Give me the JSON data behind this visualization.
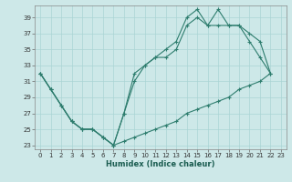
{
  "background_color": "#cde8e8",
  "grid_color": "#aad4d4",
  "line_color": "#2e7d6e",
  "xlabel": "Humidex (Indice chaleur)",
  "xlim": [
    -0.5,
    23.5
  ],
  "ylim": [
    22.5,
    40.5
  ],
  "yticks": [
    23,
    25,
    27,
    29,
    31,
    33,
    35,
    37,
    39
  ],
  "xticks": [
    0,
    1,
    2,
    3,
    4,
    5,
    6,
    7,
    8,
    9,
    10,
    11,
    12,
    13,
    14,
    15,
    16,
    17,
    18,
    19,
    20,
    21,
    22,
    23
  ],
  "series_upper": [
    32,
    30,
    28,
    26,
    25,
    25,
    24,
    23,
    27,
    32,
    33,
    34,
    35,
    36,
    39,
    40,
    38,
    40,
    38,
    38,
    37,
    36,
    32,
    null
  ],
  "series_mid": [
    32,
    30,
    28,
    26,
    25,
    25,
    24,
    23,
    27,
    31,
    33,
    34,
    34,
    35,
    38,
    39,
    38,
    38,
    38,
    38,
    36,
    34,
    32,
    null
  ],
  "series_lower": [
    32,
    30,
    28,
    26,
    25,
    25,
    24,
    23,
    23.5,
    24,
    24.5,
    25,
    25.5,
    26,
    27,
    27.5,
    28,
    28.5,
    29,
    30,
    30.5,
    31,
    32,
    null
  ]
}
